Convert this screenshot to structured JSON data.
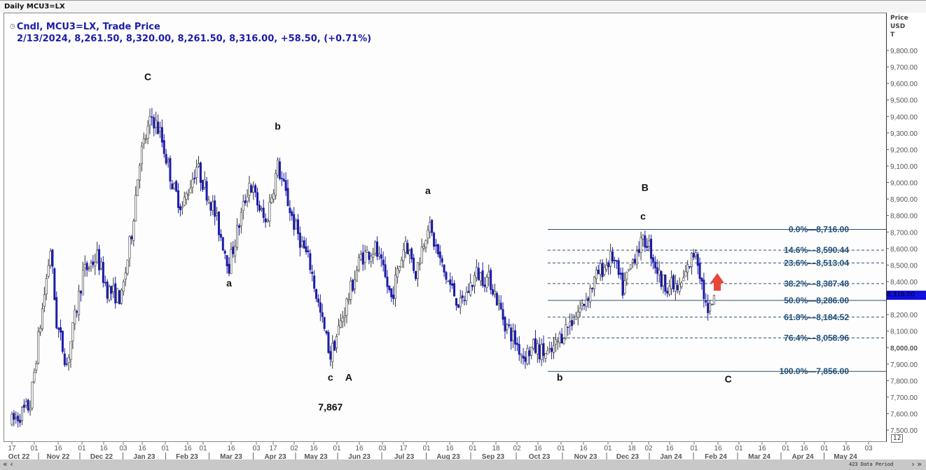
{
  "window_title": "Daily MCU3=LX",
  "legend": {
    "line1": "Cndl, MCU3=LX, Trade Price",
    "line2": "2/13/2024, 8,261.50, 8,320.00, 8,261.50, 8,316.00, +58.50, (+0.71%)"
  },
  "y_axis_unit": [
    "Price",
    "USD",
    "T"
  ],
  "current_price_label": "8,316.00",
  "zoom_badge": "12",
  "data_period": "423 Data Period",
  "colors": {
    "down_candle": "#1c1ca8",
    "up_candle": "#ffffff",
    "candle_outline": "#333333",
    "fib_text": "#1f4e79",
    "fib_line": "#2f4f6f",
    "current_price_bg": "#1010e0",
    "arrow": "#e8463a"
  },
  "chart_data": {
    "type": "candlestick",
    "ylim": [
      7450,
      9900
    ],
    "y_ticks": [
      {
        "v": 9800,
        "label": "9,800.00"
      },
      {
        "v": 9700,
        "label": "9,700.00"
      },
      {
        "v": 9600,
        "label": "9,600.00"
      },
      {
        "v": 9500,
        "label": "9,500.00"
      },
      {
        "v": 9400,
        "label": "9,400.00"
      },
      {
        "v": 9300,
        "label": "9,300.00"
      },
      {
        "v": 9200,
        "label": "9,200.00"
      },
      {
        "v": 9100,
        "label": "9,100.00"
      },
      {
        "v": 9000,
        "label": "9,000.00"
      },
      {
        "v": 8900,
        "label": "8,900.00"
      },
      {
        "v": 8800,
        "label": "8,800.00"
      },
      {
        "v": 8700,
        "label": "8,700.00"
      },
      {
        "v": 8600,
        "label": "8,600.00"
      },
      {
        "v": 8500,
        "label": "8,500.00"
      },
      {
        "v": 8400,
        "label": "8,400.00"
      },
      {
        "v": 8200,
        "label": "8,200.00"
      },
      {
        "v": 8100,
        "label": "8,100.00"
      },
      {
        "v": 8000,
        "label": "8,000.00"
      },
      {
        "v": 7900,
        "label": "7,900.00"
      },
      {
        "v": 7800,
        "label": "7,800.00"
      },
      {
        "v": 7700,
        "label": "7,700.00"
      },
      {
        "v": 7600,
        "label": "7,600.00"
      },
      {
        "v": 7500,
        "label": "7,500.00"
      }
    ],
    "x_day_ticks": [
      "17",
      "01",
      "16",
      "01",
      "16",
      "03",
      "16",
      "01",
      "16",
      "01",
      "16",
      "03",
      "17",
      "02",
      "16",
      "01",
      "16",
      "03",
      "17",
      "01",
      "16",
      "01",
      "18",
      "02",
      "16",
      "01",
      "16",
      "01",
      "18",
      "02",
      "16",
      "01",
      "16",
      "01",
      "16",
      "01",
      "16",
      "01",
      "16",
      "03"
    ],
    "x_month_labels": [
      "Oct 22",
      "Nov 22",
      "Dec 22",
      "Jan 23",
      "Feb 23",
      "Mar 23",
      "Apr 23",
      "May 23",
      "Jun 23",
      "Jul 23",
      "Aug 23",
      "Sep 23",
      "Oct 23",
      "Nov 23",
      "Dec 23",
      "Jan 24",
      "Feb 24",
      "Mar 24",
      "Apr 24",
      "May 24"
    ],
    "approx_close_path": [
      [
        "2022-10-17",
        7550
      ],
      [
        "2022-10-28",
        7650
      ],
      [
        "2022-11-03",
        8050
      ],
      [
        "2022-11-11",
        8600
      ],
      [
        "2022-11-16",
        8150
      ],
      [
        "2022-11-23",
        7900
      ],
      [
        "2022-12-05",
        8450
      ],
      [
        "2022-12-14",
        8550
      ],
      [
        "2022-12-21",
        8350
      ],
      [
        "2022-12-30",
        8300
      ],
      [
        "2023-01-06",
        8700
      ],
      [
        "2023-01-12",
        9150
      ],
      [
        "2023-01-20",
        9400
      ],
      [
        "2023-01-26",
        9300
      ],
      [
        "2023-02-06",
        8950
      ],
      [
        "2023-02-10",
        8850
      ],
      [
        "2023-02-21",
        9100
      ],
      [
        "2023-03-03",
        8850
      ],
      [
        "2023-03-15",
        8500
      ],
      [
        "2023-03-29",
        9000
      ],
      [
        "2023-04-10",
        8750
      ],
      [
        "2023-04-18",
        9100
      ],
      [
        "2023-04-28",
        8750
      ],
      [
        "2023-05-10",
        8500
      ],
      [
        "2023-05-17",
        8200
      ],
      [
        "2023-05-24",
        7950
      ],
      [
        "2023-05-31",
        8150
      ],
      [
        "2023-06-14",
        8550
      ],
      [
        "2023-06-23",
        8600
      ],
      [
        "2023-07-05",
        8300
      ],
      [
        "2023-07-14",
        8650
      ],
      [
        "2023-07-21",
        8450
      ],
      [
        "2023-07-31",
        8750
      ],
      [
        "2023-08-10",
        8450
      ],
      [
        "2023-08-22",
        8250
      ],
      [
        "2023-09-01",
        8450
      ],
      [
        "2023-09-12",
        8400
      ],
      [
        "2023-09-21",
        8150
      ],
      [
        "2023-10-04",
        7950
      ],
      [
        "2023-10-11",
        8000
      ],
      [
        "2023-10-23",
        7950
      ],
      [
        "2023-11-01",
        8100
      ],
      [
        "2023-11-14",
        8250
      ],
      [
        "2023-11-24",
        8450
      ],
      [
        "2023-12-05",
        8550
      ],
      [
        "2023-12-12",
        8350
      ],
      [
        "2023-12-21",
        8600
      ],
      [
        "2023-12-28",
        8650
      ],
      [
        "2024-01-08",
        8400
      ],
      [
        "2024-01-19",
        8350
      ],
      [
        "2024-01-31",
        8600
      ],
      [
        "2024-02-08",
        8180
      ],
      [
        "2024-02-13",
        8316
      ]
    ],
    "last_candle": {
      "date": "2024-02-13",
      "open": 8261.5,
      "high": 8320.0,
      "low": 8261.5,
      "close": 8316.0
    },
    "fibonacci": [
      {
        "pct": "0.0%",
        "price": 8716.0,
        "label": "8,716.00",
        "style": "solid"
      },
      {
        "pct": "14.6%",
        "price": 8590.44,
        "label": "8,590.44",
        "style": "dashed"
      },
      {
        "pct": "23.6%",
        "price": 8513.04,
        "label": "8,513.04",
        "style": "dashed"
      },
      {
        "pct": "38.2%",
        "price": 8387.48,
        "label": "8,387.48",
        "style": "dashed"
      },
      {
        "pct": "50.0%",
        "price": 8286.0,
        "label": "8,286.00",
        "style": "solid"
      },
      {
        "pct": "61.8%",
        "price": 8184.52,
        "label": "8,184.52",
        "style": "dashed"
      },
      {
        "pct": "76.4%",
        "price": 8058.96,
        "label": "8,058.96",
        "style": "dashed"
      },
      {
        "pct": "100.0%",
        "price": 7856.0,
        "label": "7,856.00",
        "style": "solid"
      }
    ],
    "wave_labels": [
      {
        "text": "C",
        "date": "2023-01-18",
        "price": 9620
      },
      {
        "text": "b",
        "date": "2023-04-18",
        "price": 9320
      },
      {
        "text": "a",
        "date": "2023-03-15",
        "price": 8370
      },
      {
        "text": "c",
        "date": "2023-05-24",
        "price": 7800
      },
      {
        "text": "A",
        "date": "2023-06-06",
        "price": 7800
      },
      {
        "text": "7,867",
        "date": "2023-05-24",
        "price": 7620
      },
      {
        "text": "a",
        "date": "2023-07-31",
        "price": 8930
      },
      {
        "text": "b",
        "date": "2023-10-30",
        "price": 7800
      },
      {
        "text": "B",
        "date": "2023-12-27",
        "price": 8950
      },
      {
        "text": "c",
        "date": "2023-12-26",
        "price": 8775
      },
      {
        "text": "C",
        "date": "2024-02-22",
        "price": 7790
      }
    ]
  }
}
